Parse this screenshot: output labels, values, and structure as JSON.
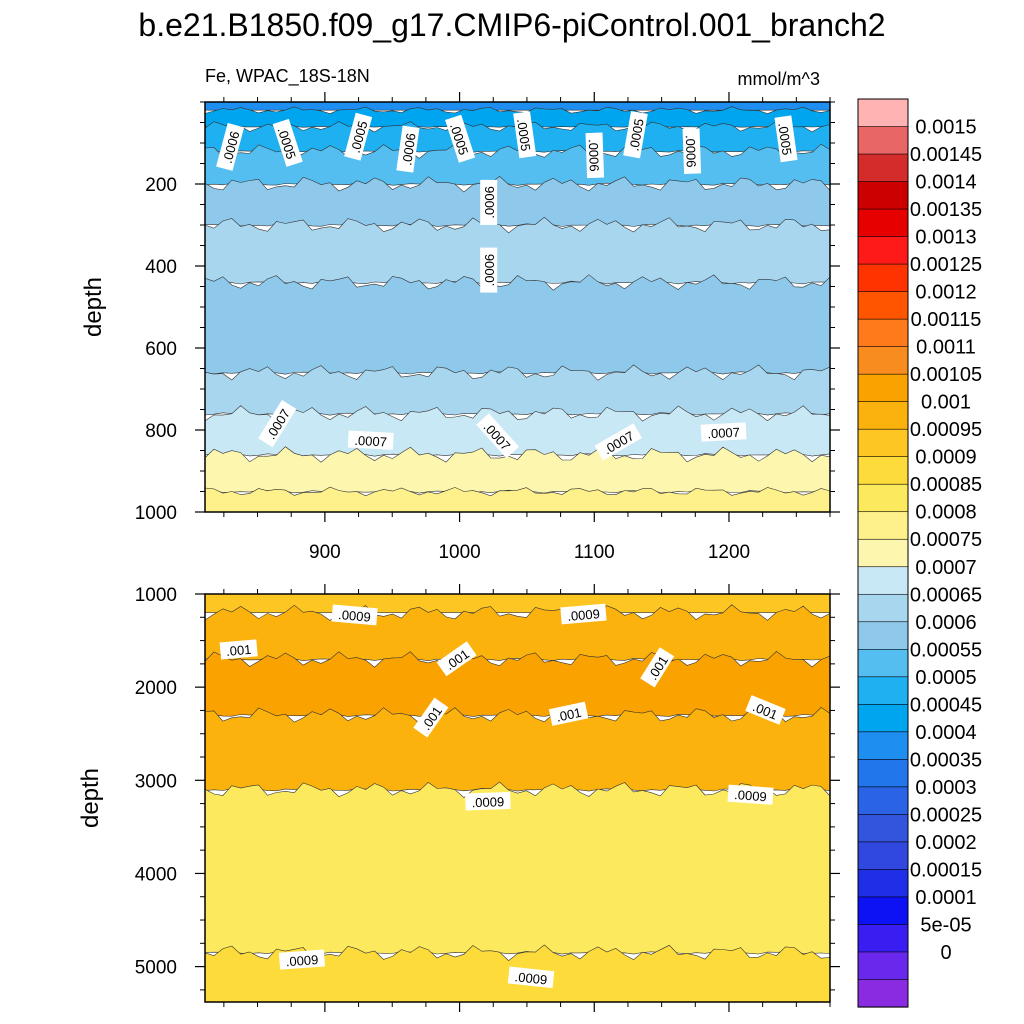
{
  "title": "b.e21.B1850.f09_g17.CMIP6-piControl.001_branch2",
  "variable_label": "Fe, WPAC_18S-18N",
  "units_label": "mmol/m^3",
  "chart_data": [
    {
      "type": "heatmap",
      "panel": "upper",
      "ylabel": "depth",
      "xlabel": "",
      "xlim": [
        811,
        1275
      ],
      "ylim": [
        1000,
        0
      ],
      "xticks": [
        900,
        1000,
        1100,
        1200
      ],
      "yticks": [
        200,
        400,
        600,
        800,
        1000
      ],
      "grid": false,
      "fill_bands": [
        {
          "depth_top": 0,
          "depth_bottom": 20,
          "value": 0.0004
        },
        {
          "depth_top": 20,
          "depth_bottom": 60,
          "value": 0.00045
        },
        {
          "depth_top": 60,
          "depth_bottom": 120,
          "value": 0.0005
        },
        {
          "depth_top": 120,
          "depth_bottom": 200,
          "value": 0.00055
        },
        {
          "depth_top": 200,
          "depth_bottom": 300,
          "value": 0.0006
        },
        {
          "depth_top": 300,
          "depth_bottom": 440,
          "value": 0.00065
        },
        {
          "depth_top": 440,
          "depth_bottom": 660,
          "value": 0.0006
        },
        {
          "depth_top": 660,
          "depth_bottom": 760,
          "value": 0.00065
        },
        {
          "depth_top": 760,
          "depth_bottom": 860,
          "value": 0.0007
        },
        {
          "depth_top": 860,
          "depth_bottom": 950,
          "value": 0.00075
        },
        {
          "depth_top": 950,
          "depth_bottom": 1000,
          "value": 0.0008
        }
      ],
      "contour_labels": [
        {
          "text": ".0006",
          "x": 830,
          "depth": 110,
          "angle": -75
        },
        {
          "text": ".0005",
          "x": 872,
          "depth": 100,
          "angle": 72
        },
        {
          "text": ".0005",
          "x": 925,
          "depth": 85,
          "angle": -75
        },
        {
          "text": ".0006",
          "x": 962,
          "depth": 115,
          "angle": -82
        },
        {
          "text": ".0005",
          "x": 1000,
          "depth": 90,
          "angle": 72
        },
        {
          "text": ".0005",
          "x": 1048,
          "depth": 80,
          "angle": 82
        },
        {
          "text": ".0006",
          "x": 1100,
          "depth": 130,
          "angle": 88
        },
        {
          "text": ".0005",
          "x": 1131,
          "depth": 80,
          "angle": -80
        },
        {
          "text": ".0006",
          "x": 1172,
          "depth": 120,
          "angle": 88
        },
        {
          "text": ".0005",
          "x": 1242,
          "depth": 90,
          "angle": 82
        },
        {
          "text": ".0006",
          "x": 1022,
          "depth": 245,
          "angle": -90
        },
        {
          "text": ".0006",
          "x": 1022,
          "depth": 410,
          "angle": -90
        },
        {
          "text": ".0007",
          "x": 865,
          "depth": 785,
          "angle": -58
        },
        {
          "text": ".0007",
          "x": 934,
          "depth": 826,
          "angle": 3
        },
        {
          "text": ".0007",
          "x": 1028,
          "depth": 815,
          "angle": 48
        },
        {
          "text": ".0007",
          "x": 1118,
          "depth": 830,
          "angle": -30
        },
        {
          "text": ".0007",
          "x": 1196,
          "depth": 806,
          "angle": -3
        }
      ]
    },
    {
      "type": "heatmap",
      "panel": "lower",
      "ylabel": "depth",
      "xlabel": "",
      "xlim": [
        811,
        1275
      ],
      "ylim": [
        5380,
        1000
      ],
      "xticks": [
        900,
        1000,
        1100,
        1200
      ],
      "yticks": [
        1000,
        2000,
        3000,
        4000,
        5000
      ],
      "grid": false,
      "fill_bands": [
        {
          "depth_top": 1000,
          "depth_bottom": 1200,
          "value": 0.00095
        },
        {
          "depth_top": 1200,
          "depth_bottom": 1700,
          "value": 0.001
        },
        {
          "depth_top": 1700,
          "depth_bottom": 2300,
          "value": 0.00105
        },
        {
          "depth_top": 2300,
          "depth_bottom": 3100,
          "value": 0.001
        },
        {
          "depth_top": 3100,
          "depth_bottom": 4850,
          "value": 0.00085
        },
        {
          "depth_top": 4850,
          "depth_bottom": 5380,
          "value": 0.0009
        }
      ],
      "contour_labels": [
        {
          "text": ".0009",
          "x": 922,
          "depth": 1230,
          "angle": 5
        },
        {
          "text": ".0009",
          "x": 1092,
          "depth": 1220,
          "angle": -5
        },
        {
          "text": ".001",
          "x": 836,
          "depth": 1600,
          "angle": -5
        },
        {
          "text": ".001",
          "x": 998,
          "depth": 1700,
          "angle": -35
        },
        {
          "text": ".001",
          "x": 1147,
          "depth": 1790,
          "angle": -58
        },
        {
          "text": ".001",
          "x": 979,
          "depth": 2330,
          "angle": -55
        },
        {
          "text": ".001",
          "x": 1081,
          "depth": 2290,
          "angle": -12
        },
        {
          "text": ".001",
          "x": 1227,
          "depth": 2250,
          "angle": 22
        },
        {
          "text": ".0009",
          "x": 1021,
          "depth": 3230,
          "angle": -2
        },
        {
          "text": ".0009",
          "x": 1216,
          "depth": 3160,
          "angle": 4
        },
        {
          "text": ".0009",
          "x": 883,
          "depth": 4930,
          "angle": -4
        },
        {
          "text": ".0009",
          "x": 1053,
          "depth": 5120,
          "angle": 6
        }
      ]
    }
  ],
  "colorbar": {
    "labels": [
      "0.0015",
      "0.00145",
      "0.0014",
      "0.00135",
      "0.0013",
      "0.00125",
      "0.0012",
      "0.00115",
      "0.0011",
      "0.00105",
      "0.001",
      "0.00095",
      "0.0009",
      "0.00085",
      "0.0008",
      "0.00075",
      "0.0007",
      "0.00065",
      "0.0006",
      "0.00055",
      "0.0005",
      "0.00045",
      "0.0004",
      "0.00035",
      "0.0003",
      "0.00025",
      "0.0002",
      "0.00015",
      "0.0001",
      "5e-05",
      "0"
    ],
    "colors": [
      "#ffb3b3",
      "#e96666",
      "#d42b2b",
      "#cc0000",
      "#e60000",
      "#ff1a1a",
      "#ff3300",
      "#ff5500",
      "#ff7a1a",
      "#f88c1e",
      "#f9a200",
      "#fbb20d",
      "#fdc622",
      "#fddb3a",
      "#fde95e",
      "#fef08a",
      "#fdf6ae",
      "#c9e8f5",
      "#a9d6ef",
      "#8ec9ec",
      "#55bef0",
      "#1eb0f1",
      "#00a5ef",
      "#1e8ef0",
      "#2176ec",
      "#2a63e6",
      "#3355dd",
      "#3048df",
      "#1f2fe8",
      "#0d12f5",
      "#3a1df0",
      "#6a28ec",
      "#8a2be2"
    ]
  }
}
